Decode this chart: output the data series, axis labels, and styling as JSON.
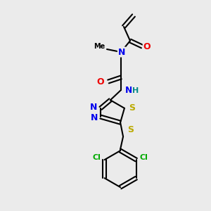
{
  "bg_color": "#ebebeb",
  "atom_colors": {
    "C": "#000000",
    "N": "#0000ee",
    "O": "#ee0000",
    "S": "#bbaa00",
    "Cl": "#00aa00",
    "H": "#008888"
  },
  "figsize": [
    3.0,
    3.0
  ],
  "dpi": 100
}
